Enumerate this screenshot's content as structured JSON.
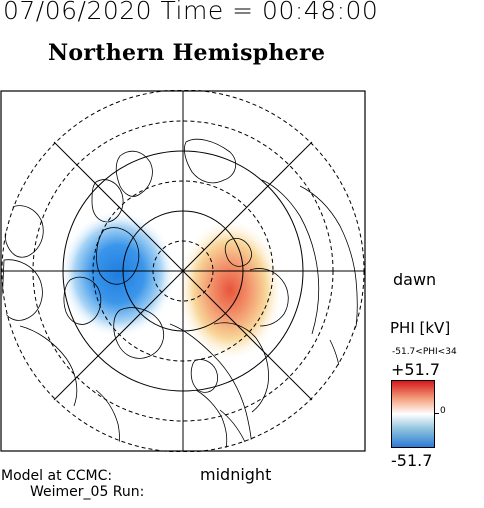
{
  "header": {
    "date_time": "07/06/2020 Time = 00:48:00",
    "title": "Northern Hemisphere"
  },
  "map": {
    "local_time_labels": {
      "dawn": "dawn",
      "midnight": "midnight"
    },
    "grid": {
      "solid_circles": 3,
      "dashed_circles": 3,
      "meridian_lines": "every 45 degrees"
    },
    "potential_pattern": {
      "negative_cell_side": "dusk (left)",
      "positive_cell_side": "dawn (right)"
    }
  },
  "legend": {
    "quantity": "PHI [kV]",
    "range_text": "-51.7<PHI<34",
    "max_label": "+51.7",
    "zero_label": "0",
    "min_label": "-51.7",
    "colors": {
      "max": "#d7191c",
      "mid": "#ffffff",
      "min": "#2c7bd6"
    }
  },
  "footer": {
    "model_line": "Model at CCMC:",
    "run_line": "Weimer_05 Run:"
  }
}
